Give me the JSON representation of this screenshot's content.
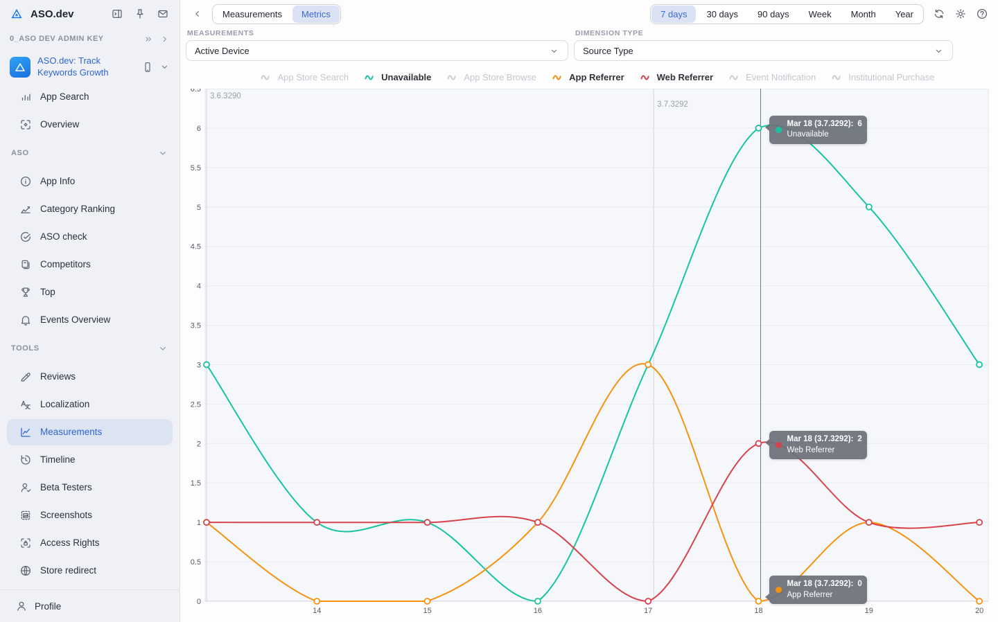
{
  "colors": {
    "accent": "#3a6ad4",
    "teal": "#17c3a1",
    "orange": "#f6920e",
    "red": "#d7434d",
    "disabled": "#c9cdd4"
  },
  "sidebar": {
    "title": "ASO.dev",
    "admin_key_label": "0_ASO DEV ADMIN KEY",
    "app": {
      "name": "ASO.dev: Track Keywords Growth"
    },
    "items_top": [
      {
        "label": "App Search",
        "icon": "bars"
      },
      {
        "label": "Overview",
        "icon": "overview"
      }
    ],
    "sections": [
      {
        "label": "ASO",
        "items": [
          {
            "label": "App Info",
            "icon": "info"
          },
          {
            "label": "Category Ranking",
            "icon": "ranking"
          },
          {
            "label": "ASO check",
            "icon": "check-circle"
          },
          {
            "label": "Competitors",
            "icon": "competitors"
          },
          {
            "label": "Top",
            "icon": "trophy"
          },
          {
            "label": "Events Overview",
            "icon": "bell"
          }
        ]
      },
      {
        "label": "TOOLS",
        "items": [
          {
            "label": "Reviews",
            "icon": "pen"
          },
          {
            "label": "Localization",
            "icon": "translate"
          },
          {
            "label": "Measurements",
            "icon": "measure",
            "selected": true
          },
          {
            "label": "Timeline",
            "icon": "history"
          },
          {
            "label": "Beta Testers",
            "icon": "user-check"
          },
          {
            "label": "Screenshots",
            "icon": "screenshot"
          },
          {
            "label": "Access Rights",
            "icon": "lock-frame"
          },
          {
            "label": "Store redirect",
            "icon": "globe"
          }
        ]
      }
    ],
    "profile_label": "Profile"
  },
  "topbar": {
    "tabs": [
      {
        "label": "Measurements",
        "active": false
      },
      {
        "label": "Metrics",
        "active": true
      }
    ],
    "ranges": [
      {
        "label": "7 days",
        "active": true
      },
      {
        "label": "30 days",
        "active": false
      },
      {
        "label": "90 days",
        "active": false
      },
      {
        "label": "Week",
        "active": false
      },
      {
        "label": "Month",
        "active": false
      },
      {
        "label": "Year",
        "active": false
      }
    ]
  },
  "filters": {
    "measurements_label": "MEASUREMENTS",
    "measurements_value": "Active Device",
    "dimension_label": "DIMENSION TYPE",
    "dimension_value": "Source Type"
  },
  "legend": [
    {
      "label": "App Store Search",
      "color": "#c9cdd4",
      "active": false
    },
    {
      "label": "Unavailable",
      "color": "#17c3a1",
      "active": true
    },
    {
      "label": "App Store Browse",
      "color": "#c9cdd4",
      "active": false
    },
    {
      "label": "App Referrer",
      "color": "#f6920e",
      "active": true
    },
    {
      "label": "Web Referrer",
      "color": "#d7434d",
      "active": true
    },
    {
      "label": "Event Notification",
      "color": "#c9cdd4",
      "active": false
    },
    {
      "label": "Institutional Purchase",
      "color": "#c9cdd4",
      "active": false
    }
  ],
  "chart_data": {
    "type": "line",
    "x": [
      13,
      14,
      15,
      16,
      17,
      18,
      19,
      20
    ],
    "x_axis_tick_labels": [
      "14",
      "15",
      "16",
      "17",
      "18",
      "19",
      "20"
    ],
    "ylim": [
      0,
      6.5
    ],
    "ytick_step": 0.5,
    "grid": "horizontal",
    "legend_position": "top-center",
    "series": [
      {
        "name": "Unavailable",
        "color": "#17c3a1",
        "values": [
          3,
          1,
          1,
          0,
          3,
          6,
          5,
          3
        ]
      },
      {
        "name": "App Referrer",
        "color": "#f6920e",
        "values": [
          1,
          0,
          0,
          1,
          3,
          0,
          1,
          0
        ]
      },
      {
        "name": "Web Referrer",
        "color": "#d7434d",
        "values": [
          1,
          1,
          1,
          1,
          0,
          2,
          1,
          1
        ]
      }
    ],
    "inactive_series": [
      "App Store Search",
      "App Store Browse",
      "Event Notification",
      "Institutional Purchase"
    ],
    "annotations": [
      {
        "label": "3.6.3290",
        "x": 13
      },
      {
        "label": "3.7.3292",
        "x": 17.05
      }
    ],
    "hover": {
      "x": 18,
      "tooltips": [
        {
          "date_label": "Mar 18 (3.7.3292):",
          "value": 6,
          "series": "Unavailable",
          "color": "#17c3a1"
        },
        {
          "date_label": "Mar 18 (3.7.3292):",
          "value": 2,
          "series": "Web Referrer",
          "color": "#d7434d"
        },
        {
          "date_label": "Mar 18 (3.7.3292):",
          "value": 0,
          "series": "App Referrer",
          "color": "#f6920e"
        }
      ]
    }
  }
}
